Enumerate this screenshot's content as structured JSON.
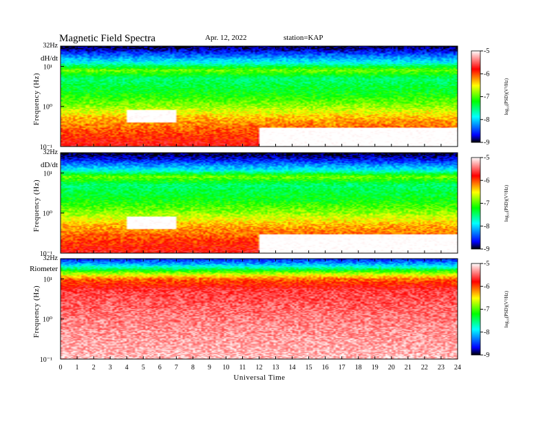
{
  "header": {
    "title": "Magnetic  Field  Spectra",
    "date": "Apr. 12, 2022",
    "station": "station=KAP"
  },
  "chart_data": {
    "type": "heatmap",
    "x_axis": {
      "label": "Universal  Time",
      "ticks": [
        "0",
        "1",
        "2",
        "3",
        "4",
        "5",
        "6",
        "7",
        "8",
        "9",
        "10",
        "11",
        "12",
        "13",
        "14",
        "15",
        "16",
        "17",
        "18",
        "19",
        "20",
        "21",
        "22",
        "23",
        "24"
      ],
      "range": [
        0,
        24
      ]
    },
    "y_scale": "log",
    "y_tick_labels": [
      "32Hz",
      "10¹",
      "10⁰",
      "10⁻¹"
    ],
    "y_tick_values": [
      32,
      10,
      1,
      0.1
    ],
    "colorbar": {
      "label": "log₁₀(PSD)(V²/Hz)",
      "ticks": [
        "-5",
        "-6",
        "-7",
        "-8",
        "-9"
      ],
      "range": [
        -9,
        -5
      ],
      "colors": [
        "#000000",
        "#0000ff",
        "#00ffff",
        "#00ff00",
        "#ffff00",
        "#ff0000",
        "#ffffff"
      ]
    },
    "panels": [
      {
        "label": "dH/dt",
        "ylabel": "Frequency  (Hz)",
        "profile": [
          [
            32,
            -9
          ],
          [
            25,
            -8.7
          ],
          [
            18,
            -8.3
          ],
          [
            12,
            -7.8
          ],
          [
            8,
            -6.9
          ],
          [
            5,
            -7.5
          ],
          [
            2,
            -7.2
          ],
          [
            1,
            -6.8
          ],
          [
            0.5,
            -6.3
          ],
          [
            0.1,
            -5.7
          ]
        ],
        "features": [
          {
            "t": [
              4,
              7
            ],
            "f": [
              0.4,
              0.8
            ],
            "note": "white blob (high power)"
          },
          {
            "t": [
              12,
              24
            ],
            "f": [
              0.1,
              0.3
            ],
            "note": "red/white band near 0.1 Hz"
          }
        ]
      },
      {
        "label": "dD/dt",
        "ylabel": "Frequency  (Hz)",
        "profile": [
          [
            32,
            -9
          ],
          [
            25,
            -8.8
          ],
          [
            18,
            -8.4
          ],
          [
            12,
            -7.9
          ],
          [
            8,
            -6.9
          ],
          [
            5,
            -7.5
          ],
          [
            2,
            -7.2
          ],
          [
            1,
            -6.8
          ],
          [
            0.5,
            -6.3
          ],
          [
            0.1,
            -5.7
          ]
        ],
        "features": [
          {
            "t": [
              4,
              7
            ],
            "f": [
              0.4,
              0.8
            ],
            "note": "white blob (high power)"
          },
          {
            "t": [
              12,
              24
            ],
            "f": [
              0.1,
              0.3
            ],
            "note": "red/white band near 0.1 Hz"
          }
        ]
      },
      {
        "label": "Riometer",
        "ylabel": "Frequency  (Hz)",
        "profile": [
          [
            32,
            -8.6
          ],
          [
            24,
            -8.2
          ],
          [
            18,
            -7.5
          ],
          [
            14,
            -6.8
          ],
          [
            10,
            -6.1
          ],
          [
            5,
            -5.6
          ],
          [
            1,
            -5.4
          ],
          [
            0.1,
            -5.2
          ]
        ],
        "features": []
      }
    ]
  }
}
